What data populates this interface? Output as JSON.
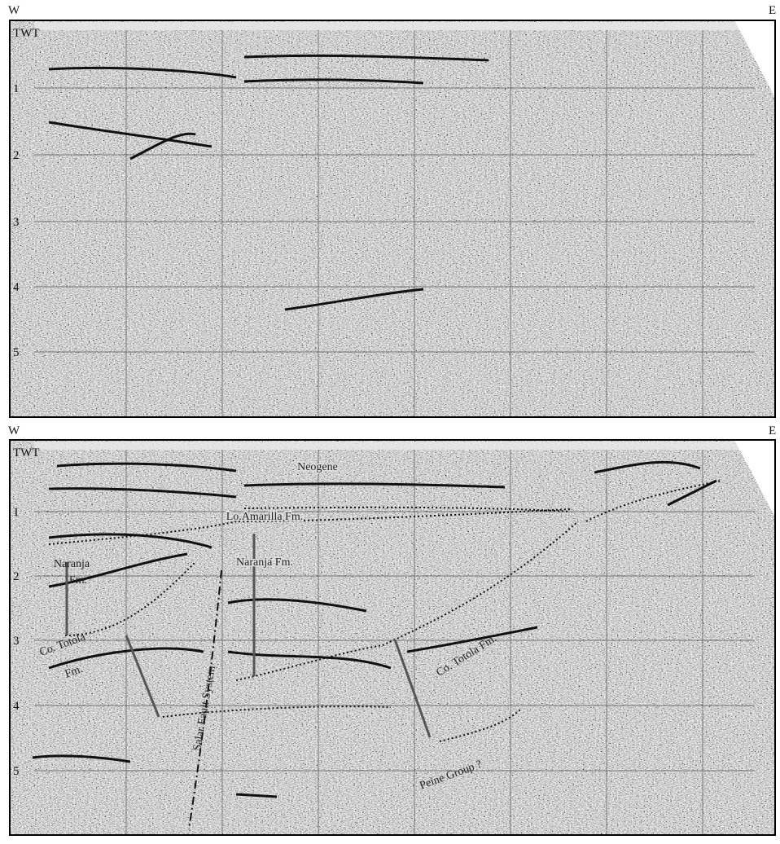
{
  "panels": [
    {
      "west": "W",
      "east": "E",
      "twt": "TWT",
      "depth_labels": [
        "1",
        "2",
        "3",
        "4",
        "5"
      ]
    },
    {
      "west": "W",
      "east": "E",
      "twt": "TWT",
      "depth_labels": [
        "1",
        "2",
        "3",
        "4",
        "5"
      ],
      "annotations": [
        "Neogene",
        "Lo.Amarilla Fm.",
        "Naranja Fm.",
        "Naranja",
        "Fm.",
        "Co. Totola",
        "Fm.",
        "Salar Fault System",
        "Co. Totola Fm.",
        "Peine Group ?"
      ]
    }
  ]
}
